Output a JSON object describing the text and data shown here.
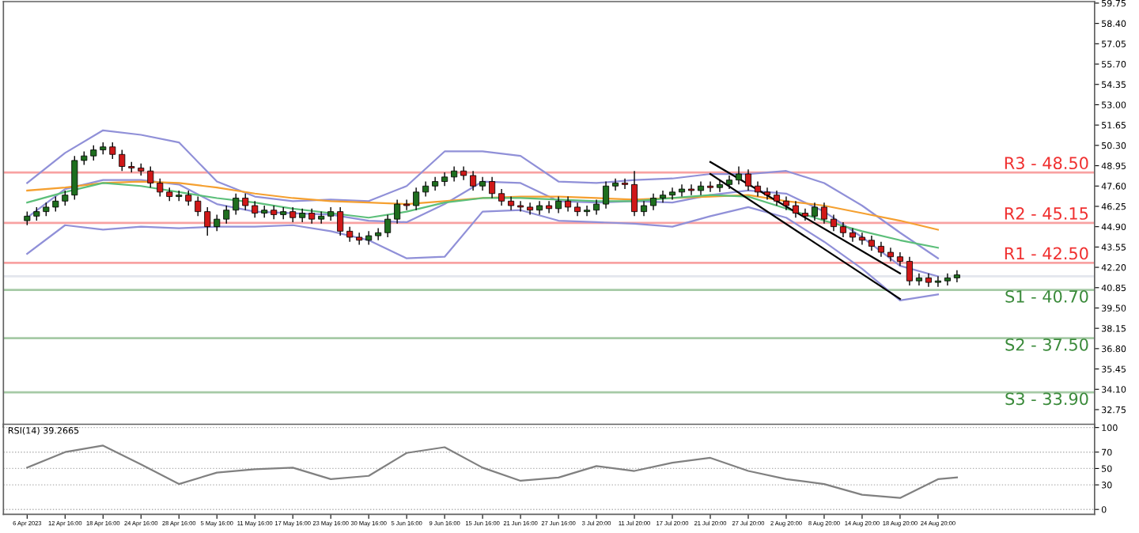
{
  "chart_data": [
    {
      "type": "candlestick",
      "categories": [
        null,
        null,
        null,
        null,
        null,
        null,
        null,
        null,
        null,
        null,
        null,
        null,
        null,
        null,
        null,
        null,
        null,
        null,
        null,
        null,
        null,
        null,
        null,
        null,
        null,
        null,
        null,
        null,
        null,
        null,
        null,
        null,
        null,
        null,
        null,
        null,
        null,
        null,
        null,
        null,
        null,
        null,
        null,
        null,
        null,
        null,
        null,
        null,
        null,
        null,
        null,
        null,
        null,
        null,
        null,
        null,
        null,
        null,
        null,
        null,
        null,
        null,
        null,
        null,
        null,
        null,
        null,
        null,
        null,
        null,
        null,
        null,
        null,
        null,
        null,
        null,
        null,
        null,
        null,
        null,
        null,
        null,
        null,
        null,
        null,
        null,
        null,
        null,
        null,
        null,
        null,
        null,
        null,
        null,
        null,
        null,
        null,
        null,
        null,
        null,
        null,
        null,
        null,
        null,
        null,
        null,
        null,
        null,
        null,
        null,
        null,
        null,
        null
      ],
      "ohlc": [
        [
          45.3,
          45.9,
          45.0,
          45.6
        ],
        [
          45.6,
          46.2,
          45.3,
          45.9
        ],
        [
          45.9,
          46.5,
          45.6,
          46.2
        ],
        [
          46.2,
          46.9,
          45.9,
          46.6
        ],
        [
          46.6,
          47.3,
          46.3,
          47.0
        ],
        [
          47.0,
          49.6,
          46.7,
          49.3
        ],
        [
          49.3,
          49.9,
          49.0,
          49.6
        ],
        [
          49.6,
          50.3,
          49.3,
          50.0
        ],
        [
          50.0,
          50.5,
          49.7,
          50.2
        ],
        [
          50.2,
          50.5,
          49.4,
          49.7
        ],
        [
          49.7,
          50.0,
          48.6,
          48.9
        ],
        [
          48.9,
          49.2,
          48.5,
          48.8
        ],
        [
          48.8,
          49.1,
          48.3,
          48.6
        ],
        [
          48.6,
          48.9,
          47.5,
          47.8
        ],
        [
          47.8,
          48.1,
          46.9,
          47.2
        ],
        [
          47.2,
          47.5,
          46.6,
          46.9
        ],
        [
          46.9,
          47.3,
          46.6,
          47.0
        ],
        [
          47.0,
          47.3,
          46.3,
          46.6
        ],
        [
          46.6,
          46.9,
          45.6,
          45.9
        ],
        [
          45.9,
          46.2,
          44.3,
          44.9
        ],
        [
          44.9,
          45.7,
          44.6,
          45.4
        ],
        [
          45.4,
          46.3,
          45.1,
          46.0
        ],
        [
          46.0,
          47.1,
          45.7,
          46.8
        ],
        [
          46.8,
          47.1,
          46.0,
          46.3
        ],
        [
          46.3,
          46.6,
          45.5,
          45.8
        ],
        [
          45.8,
          46.3,
          45.5,
          46.0
        ],
        [
          46.0,
          46.3,
          45.4,
          45.7
        ],
        [
          45.7,
          46.2,
          45.4,
          45.9
        ],
        [
          45.9,
          46.2,
          45.2,
          45.5
        ],
        [
          45.5,
          46.1,
          45.2,
          45.8
        ],
        [
          45.8,
          46.1,
          45.1,
          45.4
        ],
        [
          45.4,
          45.9,
          45.1,
          45.6
        ],
        [
          45.6,
          46.2,
          45.3,
          45.9
        ],
        [
          45.9,
          46.2,
          44.3,
          44.6
        ],
        [
          44.6,
          44.9,
          43.9,
          44.2
        ],
        [
          44.2,
          44.5,
          43.7,
          44.0
        ],
        [
          44.0,
          44.6,
          43.7,
          44.3
        ],
        [
          44.3,
          44.8,
          44.0,
          44.5
        ],
        [
          44.5,
          45.7,
          44.2,
          45.4
        ],
        [
          45.4,
          46.7,
          45.1,
          46.4
        ],
        [
          46.4,
          46.7,
          46.0,
          46.3
        ],
        [
          46.3,
          47.5,
          46.0,
          47.2
        ],
        [
          47.2,
          47.9,
          46.9,
          47.6
        ],
        [
          47.6,
          48.2,
          47.3,
          47.9
        ],
        [
          47.9,
          48.5,
          47.6,
          48.2
        ],
        [
          48.2,
          48.9,
          47.9,
          48.6
        ],
        [
          48.6,
          48.9,
          48.0,
          48.3
        ],
        [
          48.3,
          48.6,
          47.3,
          47.6
        ],
        [
          47.6,
          48.2,
          47.3,
          47.9
        ],
        [
          47.9,
          48.2,
          46.8,
          47.1
        ],
        [
          47.1,
          47.4,
          46.3,
          46.6
        ],
        [
          46.6,
          46.9,
          46.0,
          46.3
        ],
        [
          46.3,
          46.6,
          45.9,
          46.2
        ],
        [
          46.2,
          46.5,
          45.7,
          46.0
        ],
        [
          46.0,
          46.6,
          45.7,
          46.3
        ],
        [
          46.3,
          46.6,
          45.8,
          46.1
        ],
        [
          46.1,
          46.9,
          45.8,
          46.6
        ],
        [
          46.6,
          46.9,
          45.9,
          46.2
        ],
        [
          46.2,
          46.5,
          45.6,
          45.9
        ],
        [
          45.9,
          46.3,
          45.6,
          46.0
        ],
        [
          46.0,
          46.7,
          45.7,
          46.4
        ],
        [
          46.4,
          47.9,
          46.1,
          47.6
        ],
        [
          47.6,
          48.1,
          47.3,
          47.8
        ],
        [
          47.8,
          48.1,
          47.4,
          47.7
        ],
        [
          47.7,
          48.6,
          45.6,
          45.9
        ],
        [
          45.9,
          46.6,
          45.6,
          46.3
        ],
        [
          46.3,
          47.1,
          46.0,
          46.8
        ],
        [
          46.8,
          47.3,
          46.5,
          47.0
        ],
        [
          47.0,
          47.5,
          46.7,
          47.2
        ],
        [
          47.2,
          47.7,
          46.9,
          47.4
        ],
        [
          47.4,
          47.7,
          47.0,
          47.3
        ],
        [
          47.3,
          47.9,
          47.0,
          47.6
        ],
        [
          47.6,
          47.9,
          47.2,
          47.5
        ],
        [
          47.5,
          48.0,
          47.2,
          47.7
        ],
        [
          47.7,
          48.3,
          47.4,
          48.0
        ],
        [
          48.0,
          48.9,
          47.7,
          48.4
        ],
        [
          48.4,
          48.7,
          47.3,
          47.6
        ],
        [
          47.6,
          47.9,
          46.9,
          47.2
        ],
        [
          47.2,
          47.5,
          46.7,
          47.0
        ],
        [
          47.0,
          47.3,
          46.3,
          46.6
        ],
        [
          46.6,
          46.9,
          46.0,
          46.3
        ],
        [
          46.3,
          46.6,
          45.5,
          45.8
        ],
        [
          45.8,
          46.1,
          45.3,
          45.6
        ],
        [
          45.6,
          46.5,
          45.3,
          46.2
        ],
        [
          46.2,
          46.5,
          45.1,
          45.4
        ],
        [
          45.4,
          45.7,
          44.6,
          44.9
        ],
        [
          44.9,
          45.2,
          44.2,
          44.5
        ],
        [
          44.5,
          44.8,
          43.9,
          44.2
        ],
        [
          44.2,
          44.5,
          43.7,
          44.0
        ],
        [
          44.0,
          44.3,
          43.3,
          43.6
        ],
        [
          43.6,
          43.9,
          42.9,
          43.2
        ],
        [
          43.2,
          43.5,
          42.6,
          42.9
        ],
        [
          42.9,
          43.2,
          42.3,
          42.6
        ],
        [
          42.6,
          42.9,
          41.0,
          41.3
        ],
        [
          41.3,
          41.8,
          41.0,
          41.5
        ],
        [
          41.5,
          41.8,
          40.9,
          41.2
        ],
        [
          41.2,
          41.6,
          40.9,
          41.3
        ],
        [
          41.3,
          41.8,
          41.0,
          41.5
        ],
        [
          41.5,
          42.0,
          41.2,
          41.7
        ],
        null,
        null,
        null,
        null,
        null,
        null,
        null,
        null,
        null,
        null,
        null,
        null,
        null,
        null
      ],
      "colors": [
        "#1e6e1e",
        "#1e6e1e",
        "#1e6e1e",
        "#1e6e1e",
        "#1e6e1e",
        "#1e6e1e",
        "#1e6e1e",
        "#1e6e1e",
        "#1e6e1e",
        "#d01818",
        "#d01818",
        "#d01818",
        "#d01818",
        "#d01818",
        "#d01818",
        "#d01818",
        "#1e6e1e",
        "#d01818",
        "#d01818",
        "#d01818",
        "#1e6e1e",
        "#1e6e1e",
        "#1e6e1e",
        "#d01818",
        "#d01818",
        "#1e6e1e",
        "#d01818",
        "#1e6e1e",
        "#d01818",
        "#1e6e1e",
        "#d01818",
        "#1e6e1e",
        "#1e6e1e",
        "#d01818",
        "#d01818",
        "#d01818",
        "#1e6e1e",
        "#1e6e1e",
        "#1e6e1e",
        "#1e6e1e",
        "#d01818",
        "#1e6e1e",
        "#1e6e1e",
        "#1e6e1e",
        "#1e6e1e",
        "#1e6e1e",
        "#d01818",
        "#d01818",
        "#1e6e1e",
        "#d01818",
        "#d01818",
        "#d01818",
        "#d01818",
        "#d01818",
        "#1e6e1e",
        "#d01818",
        "#1e6e1e",
        "#d01818",
        "#d01818",
        "#1e6e1e",
        "#1e6e1e",
        "#1e6e1e",
        "#1e6e1e",
        "#d01818",
        "#d01818",
        "#1e6e1e",
        "#1e6e1e",
        "#1e6e1e",
        "#1e6e1e",
        "#1e6e1e",
        "#d01818",
        "#1e6e1e",
        "#d01818",
        "#1e6e1e",
        "#1e6e1e",
        "#1e6e1e",
        "#d01818",
        "#d01818",
        "#d01818",
        "#d01818",
        "#d01818",
        "#d01818",
        "#d01818",
        "#1e6e1e",
        "#d01818",
        "#d01818",
        "#d01818",
        "#d01818",
        "#d01818",
        "#d01818",
        "#d01818",
        "#d01818",
        "#d01818",
        "#d01818",
        "#1e6e1e",
        "#d01818",
        "#1e6e1e",
        "#1e6e1e",
        "#1e6e1e",
        null,
        null,
        null,
        null,
        null,
        null,
        null,
        null,
        null,
        null,
        null,
        null,
        null,
        null
      ],
      "series": [
        {
          "type": "line",
          "color": "#9090d8",
          "values": [
            47.8,
            null,
            null,
            null,
            49.8,
            null,
            null,
            null,
            51.3,
            null,
            null,
            null,
            51.0,
            null,
            null,
            null,
            50.5,
            null,
            null,
            null,
            47.9,
            null,
            null,
            null,
            46.9,
            null,
            null,
            null,
            46.6,
            null,
            null,
            null,
            46.7,
            null,
            null,
            null,
            46.6,
            null,
            null,
            null,
            47.6,
            null,
            null,
            null,
            49.9,
            null,
            null,
            null,
            49.9,
            null,
            null,
            null,
            49.6,
            null,
            null,
            null,
            47.9,
            null,
            null,
            null,
            47.8,
            null,
            null,
            null,
            48.0,
            null,
            null,
            null,
            48.1,
            null,
            null,
            null,
            48.4,
            null,
            null,
            null,
            48.4,
            null,
            null,
            null,
            48.6,
            null,
            null,
            null,
            47.8,
            null,
            null,
            null,
            46.3,
            null,
            null,
            null,
            44.5,
            null,
            null,
            null,
            42.8,
            null,
            null,
            null,
            null,
            null,
            null,
            null,
            null,
            null,
            null,
            null,
            null,
            null,
            null,
            null,
            null
          ]
        },
        {
          "type": "line",
          "color": "#9090d8",
          "values": [
            45.5,
            null,
            null,
            null,
            47.4,
            null,
            null,
            null,
            48.0,
            null,
            null,
            null,
            48.0,
            null,
            null,
            null,
            47.7,
            null,
            null,
            null,
            46.4,
            null,
            null,
            null,
            45.9,
            null,
            null,
            null,
            45.8,
            null,
            null,
            null,
            45.7,
            null,
            null,
            null,
            45.3,
            null,
            null,
            null,
            45.2,
            null,
            null,
            null,
            46.4,
            null,
            null,
            null,
            47.9,
            null,
            null,
            null,
            47.8,
            null,
            null,
            null,
            46.6,
            null,
            null,
            null,
            46.5,
            null,
            null,
            null,
            46.6,
            null,
            null,
            null,
            46.5,
            null,
            null,
            null,
            47.0,
            null,
            null,
            null,
            47.3,
            null,
            null,
            null,
            47.1,
            null,
            null,
            null,
            45.9,
            null,
            null,
            null,
            44.2,
            null,
            null,
            null,
            42.3,
            null,
            null,
            null,
            41.6,
            null,
            null,
            null,
            null,
            null,
            null,
            null,
            null,
            null,
            null,
            null,
            null,
            null,
            null,
            null,
            null
          ]
        },
        {
          "type": "line",
          "color": "#9090d8",
          "values": [
            43.1,
            null,
            null,
            null,
            45.0,
            null,
            null,
            null,
            44.7,
            null,
            null,
            null,
            44.9,
            null,
            null,
            null,
            44.8,
            null,
            null,
            null,
            44.9,
            null,
            null,
            null,
            44.9,
            null,
            null,
            null,
            45.0,
            null,
            null,
            null,
            44.6,
            null,
            null,
            null,
            44.0,
            null,
            null,
            null,
            42.8,
            null,
            null,
            null,
            42.9,
            null,
            null,
            null,
            45.9,
            null,
            null,
            null,
            46.0,
            null,
            null,
            null,
            45.3,
            null,
            null,
            null,
            45.2,
            null,
            null,
            null,
            45.1,
            null,
            null,
            null,
            44.9,
            null,
            null,
            null,
            45.6,
            null,
            null,
            null,
            46.2,
            null,
            null,
            null,
            45.5,
            null,
            null,
            null,
            43.9,
            null,
            null,
            null,
            42.1,
            null,
            null,
            null,
            40.0,
            null,
            null,
            null,
            40.4,
            null,
            null,
            null,
            null,
            null,
            null,
            null,
            null,
            null,
            null,
            null,
            null,
            null,
            null,
            null,
            null
          ]
        },
        {
          "type": "line",
          "color": "#f5a030",
          "values": [
            47.3,
            null,
            null,
            null,
            47.5,
            null,
            null,
            null,
            47.8,
            null,
            null,
            null,
            47.9,
            null,
            null,
            null,
            47.8,
            null,
            null,
            null,
            47.5,
            null,
            null,
            null,
            47.1,
            null,
            null,
            null,
            46.8,
            null,
            null,
            null,
            46.6,
            null,
            null,
            null,
            46.5,
            null,
            null,
            null,
            46.4,
            null,
            null,
            null,
            46.6,
            null,
            null,
            null,
            46.8,
            null,
            null,
            null,
            46.9,
            null,
            null,
            null,
            46.9,
            null,
            null,
            null,
            46.8,
            null,
            null,
            null,
            46.7,
            null,
            null,
            null,
            46.8,
            null,
            null,
            null,
            46.9,
            null,
            null,
            null,
            47.0,
            null,
            null,
            null,
            46.6,
            null,
            null,
            null,
            46.3,
            null,
            null,
            null,
            45.8,
            null,
            null,
            null,
            45.3,
            null,
            null,
            null,
            44.7,
            null,
            null,
            null,
            null,
            null,
            null,
            null,
            null,
            null,
            null,
            null,
            null,
            null,
            null,
            null,
            null
          ]
        },
        {
          "type": "line",
          "color": "#5cbf7a",
          "values": [
            46.5,
            null,
            null,
            null,
            47.2,
            null,
            null,
            null,
            47.8,
            null,
            null,
            null,
            47.6,
            null,
            null,
            null,
            47.2,
            null,
            null,
            null,
            46.8,
            null,
            null,
            null,
            46.5,
            null,
            null,
            null,
            46.1,
            null,
            null,
            null,
            45.8,
            null,
            null,
            null,
            45.5,
            null,
            null,
            null,
            45.9,
            null,
            null,
            null,
            46.5,
            null,
            null,
            null,
            46.8,
            null,
            null,
            null,
            46.8,
            null,
            null,
            null,
            46.7,
            null,
            null,
            null,
            46.6,
            null,
            null,
            null,
            46.6,
            null,
            null,
            null,
            46.8,
            null,
            null,
            null,
            47.0,
            null,
            null,
            null,
            46.9,
            null,
            null,
            null,
            46.1,
            null,
            null,
            null,
            45.3,
            null,
            null,
            null,
            44.6,
            null,
            null,
            null,
            44.0,
            null,
            null,
            null,
            43.5,
            null,
            null,
            null,
            null,
            null,
            null,
            null,
            null,
            null,
            null,
            null,
            null,
            null,
            null,
            null,
            null
          ]
        },
        {
          "type": "line",
          "color": "#000000",
          "values": [
            null,
            null,
            null,
            null,
            null,
            null,
            null,
            null,
            null,
            null,
            null,
            null,
            null,
            null,
            null,
            null,
            null,
            null,
            null,
            null,
            null,
            null,
            null,
            null,
            null,
            null,
            null,
            null,
            null,
            null,
            null,
            null,
            null,
            null,
            null,
            null,
            null,
            null,
            null,
            null,
            null,
            null,
            null,
            null,
            null,
            null,
            null,
            null,
            null,
            null,
            null,
            null,
            null,
            null,
            null,
            null,
            null,
            null,
            null,
            null,
            null,
            null,
            null,
            null,
            null,
            null,
            null,
            null,
            null,
            null,
            null,
            null,
            49.2,
            null,
            null,
            null,
            null,
            null,
            null,
            null,
            null,
            null,
            null,
            null,
            null,
            null,
            null,
            null,
            null,
            null,
            null,
            null,
            41.8,
            null,
            null,
            null,
            null,
            null,
            null,
            null,
            null,
            null,
            null,
            null,
            null,
            null,
            null,
            null,
            null,
            null,
            null,
            null,
            null
          ]
        },
        {
          "type": "line",
          "color": "#000000",
          "values": [
            null,
            null,
            null,
            null,
            null,
            null,
            null,
            null,
            null,
            null,
            null,
            null,
            null,
            null,
            null,
            null,
            null,
            null,
            null,
            null,
            null,
            null,
            null,
            null,
            null,
            null,
            null,
            null,
            null,
            null,
            null,
            null,
            null,
            null,
            null,
            null,
            null,
            null,
            null,
            null,
            null,
            null,
            null,
            null,
            null,
            null,
            null,
            null,
            null,
            null,
            null,
            null,
            null,
            null,
            null,
            null,
            null,
            null,
            null,
            null,
            null,
            null,
            null,
            null,
            null,
            null,
            null,
            null,
            null,
            null,
            null,
            null,
            48.4,
            null,
            null,
            null,
            null,
            null,
            null,
            null,
            null,
            null,
            null,
            null,
            null,
            null,
            null,
            null,
            null,
            null,
            null,
            null,
            40.1,
            null,
            null,
            null,
            null,
            null,
            null,
            null,
            null,
            null,
            null,
            null,
            null,
            null,
            null,
            null,
            null,
            null,
            null,
            null,
            null
          ]
        }
      ],
      "ylim": [
        31.6,
        59.85
      ],
      "yticks": [
        {
          "value": 59.75,
          "label": "59.75"
        },
        {
          "value": 58.4,
          "label": "58.40"
        },
        {
          "value": 57.05,
          "label": "57.05"
        },
        {
          "value": 55.7,
          "label": "55.70"
        },
        {
          "value": 54.35,
          "label": "54.35"
        },
        {
          "value": 53.0,
          "label": "53.00"
        },
        {
          "value": 51.65,
          "label": "51.65"
        },
        {
          "value": 50.3,
          "label": "50.30"
        },
        {
          "value": 48.95,
          "label": "48.95"
        },
        {
          "value": 47.6,
          "label": "47.60"
        },
        {
          "value": 46.25,
          "label": "46.25"
        },
        {
          "value": 44.9,
          "label": "44.90"
        },
        {
          "value": 43.55,
          "label": "43.55"
        },
        {
          "value": 42.2,
          "label": "42.20"
        },
        {
          "value": 40.85,
          "label": "40.85"
        },
        {
          "value": 39.5,
          "label": "39.50"
        },
        {
          "value": 38.15,
          "label": "38.15"
        },
        {
          "value": 36.8,
          "label": "36.80"
        },
        {
          "value": 35.45,
          "label": "35.45"
        },
        {
          "value": 34.1,
          "label": "34.10"
        },
        {
          "value": 32.75,
          "label": "32.75"
        }
      ],
      "ref_lines": [
        {
          "axis": "y",
          "value": 48.5,
          "label": "R3 - 48.50",
          "color": "#f03030"
        },
        {
          "axis": "y",
          "value": 45.15,
          "label": "R2 - 45.15",
          "color": "#f03030"
        },
        {
          "axis": "y",
          "value": 42.5,
          "label": "R1 - 42.50",
          "color": "#f03030"
        },
        {
          "axis": "y",
          "value": 41.6,
          "color": "#c0c8d8"
        },
        {
          "axis": "y",
          "value": 40.7,
          "label": "S1 - 40.70",
          "color": "#3a8a3a"
        },
        {
          "axis": "y",
          "value": 37.5,
          "label": "S2 - 37.50",
          "color": "#3a8a3a"
        },
        {
          "axis": "y",
          "value": 33.9,
          "label": "S3 - 33.90",
          "color": "#3a8a3a"
        }
      ],
      "tick_labels": "y"
    },
    {
      "type": "line",
      "title": "RSI(14) 39.2665",
      "categories": [
        "6 Apr 2023",
        null,
        null,
        null,
        "12 Apr 16:00",
        null,
        null,
        null,
        "18 Apr 16:00",
        null,
        null,
        null,
        "24 Apr 16:00",
        null,
        null,
        null,
        "28 Apr 16:00",
        null,
        null,
        null,
        "5 May 16:00",
        null,
        null,
        null,
        "11 May 16:00",
        null,
        null,
        null,
        "17 May 16:00",
        null,
        null,
        null,
        "23 May 16:00",
        null,
        null,
        null,
        "30 May 16:00",
        null,
        null,
        null,
        "5 Jun 16:00",
        null,
        null,
        null,
        "9 Jun 16:00",
        null,
        null,
        null,
        "15 Jun 16:00",
        null,
        null,
        null,
        "21 Jun 16:00",
        null,
        null,
        null,
        "27 Jun 16:00",
        null,
        null,
        null,
        "3 Jul 20:00",
        null,
        null,
        null,
        "11 Jul 20:00",
        null,
        null,
        null,
        "17 Jul 20:00",
        null,
        null,
        null,
        "21 Jul 20:00",
        null,
        null,
        null,
        "27 Jul 20:00",
        null,
        null,
        null,
        "2 Aug 20:00",
        null,
        null,
        null,
        "8 Aug 20:00",
        null,
        null,
        null,
        "14 Aug 20:00",
        null,
        null,
        null,
        "18 Aug 20:00",
        null,
        null,
        null,
        "24 Aug 20:00",
        null,
        null,
        null,
        null,
        null,
        null,
        null,
        null,
        null,
        null,
        null,
        null,
        null,
        null,
        null,
        null
      ],
      "series": [
        {
          "color": "#808080",
          "values": [
            51,
            null,
            null,
            null,
            70,
            null,
            null,
            null,
            78,
            null,
            null,
            null,
            55,
            null,
            null,
            null,
            31,
            null,
            null,
            null,
            45,
            null,
            null,
            null,
            49,
            null,
            null,
            null,
            51,
            null,
            null,
            null,
            37,
            null,
            null,
            null,
            41,
            null,
            null,
            null,
            69,
            null,
            null,
            null,
            76,
            null,
            null,
            null,
            51,
            null,
            null,
            null,
            35,
            null,
            null,
            null,
            39,
            null,
            null,
            null,
            53,
            null,
            null,
            null,
            47,
            null,
            null,
            null,
            57,
            null,
            null,
            null,
            63,
            null,
            null,
            null,
            47,
            null,
            null,
            null,
            37,
            null,
            null,
            null,
            31,
            null,
            null,
            null,
            18,
            null,
            null,
            null,
            14,
            null,
            null,
            null,
            37,
            null,
            39,
            null,
            null,
            null,
            null,
            null,
            null,
            null,
            null,
            null,
            null,
            null,
            null,
            null,
            null
          ]
        }
      ],
      "ylim": [
        -6,
        104
      ],
      "yticks": [
        0,
        30,
        50,
        70,
        100
      ],
      "grid": "y"
    }
  ]
}
